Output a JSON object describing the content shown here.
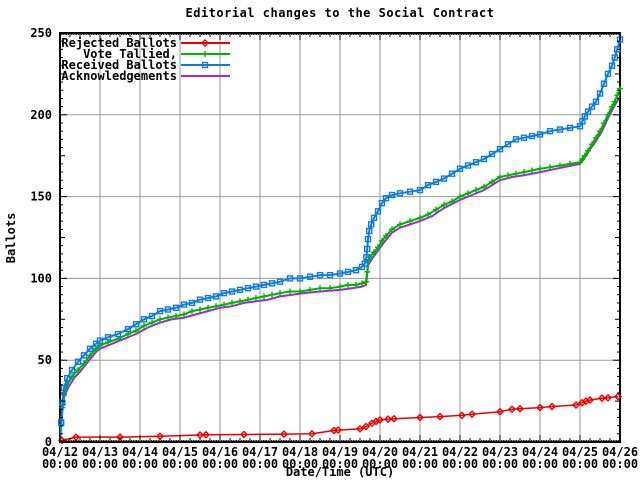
{
  "colors": {
    "grid": "#9a9a9a",
    "frame": "#000000",
    "background": "#ffffff",
    "text": "#000000"
  },
  "chart_data": {
    "type": "line",
    "title": "Editorial changes to the Social Contract",
    "xlabel": "Date/Time (UTC)",
    "ylabel": "Ballots",
    "ylim": [
      0,
      250
    ],
    "y_ticks": [
      0,
      50,
      100,
      150,
      200,
      250
    ],
    "x_unit": "days since 04/12 00:00 UTC",
    "x_range_days": [
      0,
      14
    ],
    "x_tick_dates": [
      "04/12",
      "04/13",
      "04/14",
      "04/15",
      "04/16",
      "04/17",
      "04/18",
      "04/19",
      "04/20",
      "04/21",
      "04/22",
      "04/23",
      "04/24",
      "04/25",
      "04/26"
    ],
    "x_tick_time": "00:00",
    "grid": true,
    "legend_position": "top-left",
    "draw_order": [
      3,
      1,
      2,
      0
    ],
    "series": [
      {
        "name": "Rejected Ballots",
        "color": "#ee0000",
        "marker": "diamond",
        "points": [
          [
            0,
            0
          ],
          [
            0.05,
            1
          ],
          [
            0.4,
            3
          ],
          [
            1.5,
            3
          ],
          [
            2.5,
            3.5
          ],
          [
            3.5,
            4.3
          ],
          [
            3.65,
            4.4
          ],
          [
            4.6,
            4.6
          ],
          [
            5.6,
            4.8
          ],
          [
            6.3,
            5
          ],
          [
            6.85,
            7
          ],
          [
            6.95,
            7.3
          ],
          [
            7.5,
            8
          ],
          [
            7.65,
            9.5
          ],
          [
            7.8,
            11.5
          ],
          [
            7.9,
            12.5
          ],
          [
            8.0,
            13.5
          ],
          [
            8.2,
            14
          ],
          [
            8.35,
            14.2
          ],
          [
            9.0,
            15
          ],
          [
            9.5,
            15.5
          ],
          [
            10.05,
            16.3
          ],
          [
            10.3,
            17
          ],
          [
            11.0,
            18.5
          ],
          [
            11.3,
            20
          ],
          [
            11.5,
            20.3
          ],
          [
            12.0,
            21
          ],
          [
            12.3,
            21.7
          ],
          [
            12.9,
            22.6
          ],
          [
            13.05,
            24
          ],
          [
            13.15,
            25
          ],
          [
            13.25,
            25.7
          ],
          [
            13.55,
            26.8
          ],
          [
            13.7,
            27
          ],
          [
            13.95,
            27.8
          ]
        ]
      },
      {
        "name": "Vote Tallied,",
        "color": "#00b400",
        "marker": "plus",
        "points": [
          [
            0,
            0
          ],
          [
            0.03,
            10
          ],
          [
            0.06,
            21
          ],
          [
            0.1,
            29
          ],
          [
            0.18,
            35
          ],
          [
            0.3,
            40
          ],
          [
            0.45,
            44
          ],
          [
            0.6,
            48
          ],
          [
            0.75,
            53
          ],
          [
            0.9,
            57
          ],
          [
            1.0,
            59
          ],
          [
            1.2,
            61
          ],
          [
            1.45,
            63
          ],
          [
            1.7,
            66
          ],
          [
            1.9,
            68
          ],
          [
            2.1,
            71
          ],
          [
            2.3,
            73
          ],
          [
            2.5,
            75
          ],
          [
            2.7,
            76
          ],
          [
            2.9,
            77
          ],
          [
            3.1,
            78
          ],
          [
            3.3,
            80
          ],
          [
            3.5,
            81
          ],
          [
            3.7,
            82
          ],
          [
            3.9,
            83
          ],
          [
            4.1,
            84
          ],
          [
            4.3,
            85
          ],
          [
            4.5,
            86
          ],
          [
            4.7,
            87
          ],
          [
            4.9,
            88
          ],
          [
            5.1,
            89
          ],
          [
            5.3,
            90
          ],
          [
            5.5,
            91
          ],
          [
            5.75,
            92
          ],
          [
            6.0,
            92
          ],
          [
            6.25,
            93
          ],
          [
            6.5,
            94
          ],
          [
            6.75,
            94
          ],
          [
            7.0,
            95
          ],
          [
            7.2,
            96
          ],
          [
            7.4,
            96
          ],
          [
            7.55,
            97
          ],
          [
            7.65,
            98
          ],
          [
            7.68,
            104
          ],
          [
            7.7,
            110
          ],
          [
            7.75,
            113
          ],
          [
            7.85,
            116
          ],
          [
            7.95,
            119
          ],
          [
            8.05,
            123
          ],
          [
            8.15,
            126
          ],
          [
            8.3,
            130
          ],
          [
            8.5,
            133
          ],
          [
            8.75,
            135
          ],
          [
            9.0,
            137
          ],
          [
            9.2,
            139
          ],
          [
            9.4,
            142
          ],
          [
            9.6,
            145
          ],
          [
            9.8,
            147
          ],
          [
            10.0,
            150
          ],
          [
            10.2,
            152
          ],
          [
            10.4,
            154
          ],
          [
            10.6,
            156
          ],
          [
            10.8,
            159
          ],
          [
            11.0,
            162
          ],
          [
            11.2,
            163
          ],
          [
            11.4,
            164
          ],
          [
            11.6,
            165
          ],
          [
            11.8,
            166
          ],
          [
            12.0,
            167
          ],
          [
            12.25,
            168
          ],
          [
            12.5,
            169
          ],
          [
            12.75,
            170
          ],
          [
            13.0,
            171
          ],
          [
            13.06,
            173
          ],
          [
            13.12,
            175
          ],
          [
            13.2,
            178
          ],
          [
            13.3,
            182
          ],
          [
            13.4,
            186
          ],
          [
            13.5,
            190
          ],
          [
            13.6,
            195
          ],
          [
            13.7,
            200
          ],
          [
            13.8,
            205
          ],
          [
            13.87,
            208
          ],
          [
            13.93,
            212
          ],
          [
            14.0,
            216
          ]
        ]
      },
      {
        "name": "Received Ballots",
        "color": "#0e7cd8",
        "marker": "square",
        "points": [
          [
            0,
            0
          ],
          [
            0.03,
            12
          ],
          [
            0.06,
            24
          ],
          [
            0.1,
            33
          ],
          [
            0.18,
            39
          ],
          [
            0.3,
            44
          ],
          [
            0.45,
            49
          ],
          [
            0.6,
            53
          ],
          [
            0.75,
            57
          ],
          [
            0.9,
            60
          ],
          [
            1.0,
            62
          ],
          [
            1.2,
            64
          ],
          [
            1.45,
            66
          ],
          [
            1.7,
            69
          ],
          [
            1.9,
            72
          ],
          [
            2.1,
            75
          ],
          [
            2.3,
            77
          ],
          [
            2.5,
            80
          ],
          [
            2.7,
            81
          ],
          [
            2.9,
            82
          ],
          [
            3.1,
            84
          ],
          [
            3.3,
            85
          ],
          [
            3.5,
            87
          ],
          [
            3.7,
            88
          ],
          [
            3.9,
            89
          ],
          [
            4.1,
            91
          ],
          [
            4.3,
            92
          ],
          [
            4.5,
            93
          ],
          [
            4.7,
            94
          ],
          [
            4.9,
            95
          ],
          [
            5.1,
            96
          ],
          [
            5.3,
            97
          ],
          [
            5.5,
            98
          ],
          [
            5.75,
            100
          ],
          [
            6.0,
            100
          ],
          [
            6.25,
            101
          ],
          [
            6.5,
            102
          ],
          [
            6.75,
            102
          ],
          [
            7.0,
            103
          ],
          [
            7.2,
            104
          ],
          [
            7.4,
            105
          ],
          [
            7.55,
            107
          ],
          [
            7.62,
            109
          ],
          [
            7.66,
            113
          ],
          [
            7.68,
            118
          ],
          [
            7.7,
            124
          ],
          [
            7.73,
            129
          ],
          [
            7.78,
            133
          ],
          [
            7.85,
            137
          ],
          [
            7.95,
            141
          ],
          [
            8.05,
            146
          ],
          [
            8.15,
            149
          ],
          [
            8.3,
            151
          ],
          [
            8.5,
            152
          ],
          [
            8.75,
            153
          ],
          [
            9.0,
            154
          ],
          [
            9.2,
            157
          ],
          [
            9.4,
            159
          ],
          [
            9.6,
            161
          ],
          [
            9.8,
            164
          ],
          [
            10.0,
            167
          ],
          [
            10.2,
            169
          ],
          [
            10.4,
            171
          ],
          [
            10.6,
            173
          ],
          [
            10.8,
            176
          ],
          [
            11.0,
            179
          ],
          [
            11.2,
            182
          ],
          [
            11.4,
            185
          ],
          [
            11.6,
            186
          ],
          [
            11.8,
            187
          ],
          [
            12.0,
            188
          ],
          [
            12.25,
            190
          ],
          [
            12.5,
            191
          ],
          [
            12.75,
            192
          ],
          [
            13.0,
            193
          ],
          [
            13.06,
            196
          ],
          [
            13.12,
            199
          ],
          [
            13.2,
            202
          ],
          [
            13.3,
            205
          ],
          [
            13.4,
            208
          ],
          [
            13.5,
            213
          ],
          [
            13.6,
            219
          ],
          [
            13.7,
            225
          ],
          [
            13.8,
            230
          ],
          [
            13.87,
            235
          ],
          [
            13.93,
            240
          ],
          [
            14.0,
            246
          ]
        ]
      },
      {
        "name": "Acknowledgements",
        "color": "#a328d8",
        "marker": "none",
        "points": [
          [
            0,
            0
          ],
          [
            0.06,
            19
          ],
          [
            0.1,
            27
          ],
          [
            0.2,
            33
          ],
          [
            0.35,
            39
          ],
          [
            0.5,
            43
          ],
          [
            0.7,
            49
          ],
          [
            0.9,
            55
          ],
          [
            1.0,
            57
          ],
          [
            1.3,
            60
          ],
          [
            1.6,
            63
          ],
          [
            1.9,
            66
          ],
          [
            2.2,
            70
          ],
          [
            2.5,
            73
          ],
          [
            2.8,
            75
          ],
          [
            3.1,
            76
          ],
          [
            3.4,
            78
          ],
          [
            3.7,
            80
          ],
          [
            4.0,
            82
          ],
          [
            4.3,
            83
          ],
          [
            4.6,
            85
          ],
          [
            4.9,
            86
          ],
          [
            5.2,
            87
          ],
          [
            5.5,
            89
          ],
          [
            5.8,
            90
          ],
          [
            6.1,
            91
          ],
          [
            6.5,
            92
          ],
          [
            7.0,
            93
          ],
          [
            7.3,
            94
          ],
          [
            7.55,
            95
          ],
          [
            7.65,
            96
          ],
          [
            7.68,
            102
          ],
          [
            7.7,
            108
          ],
          [
            7.8,
            112
          ],
          [
            7.95,
            117
          ],
          [
            8.1,
            122
          ],
          [
            8.3,
            128
          ],
          [
            8.5,
            131
          ],
          [
            8.75,
            133
          ],
          [
            9.0,
            135
          ],
          [
            9.3,
            138
          ],
          [
            9.6,
            143
          ],
          [
            10.0,
            148
          ],
          [
            10.3,
            151
          ],
          [
            10.6,
            154
          ],
          [
            11.0,
            160
          ],
          [
            11.3,
            162
          ],
          [
            11.6,
            163
          ],
          [
            12.0,
            165
          ],
          [
            12.4,
            167
          ],
          [
            12.8,
            169
          ],
          [
            13.0,
            170
          ],
          [
            13.1,
            173
          ],
          [
            13.25,
            179
          ],
          [
            13.4,
            184
          ],
          [
            13.55,
            190
          ],
          [
            13.7,
            198
          ],
          [
            13.85,
            205
          ],
          [
            14.0,
            211
          ]
        ]
      }
    ]
  }
}
